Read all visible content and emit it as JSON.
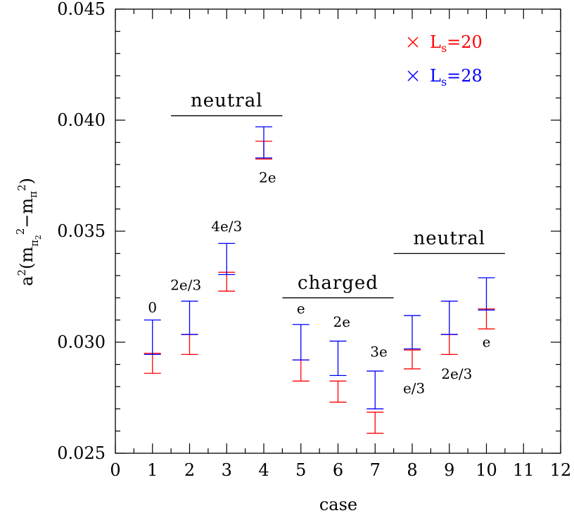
{
  "chart_data": {
    "type": "scatter",
    "xlabel": "case",
    "ylabel": "a²(m_{π₂}²−m_π²)",
    "xlim": [
      0,
      12
    ],
    "ylim": [
      0.025,
      0.045
    ],
    "x_ticks": [
      "0",
      "1",
      "2",
      "3",
      "4",
      "5",
      "6",
      "7",
      "8",
      "9",
      "10",
      "11",
      "12"
    ],
    "y_ticks": [
      "0.025",
      "0.030",
      "0.035",
      "0.040",
      "0.045"
    ],
    "grid": false,
    "legend_position": "top-right",
    "series": [
      {
        "name": "L_s=20",
        "color": "#ff0000",
        "marker": "cross",
        "points": [
          {
            "x": 1,
            "low": 0.0286,
            "high": 0.0295
          },
          {
            "x": 2,
            "low": 0.02945,
            "high": 0.03035
          },
          {
            "x": 3,
            "low": 0.0323,
            "high": 0.03315
          },
          {
            "x": 4,
            "low": 0.03825,
            "high": 0.03905
          },
          {
            "x": 5,
            "low": 0.02825,
            "high": 0.0292
          },
          {
            "x": 6,
            "low": 0.0273,
            "high": 0.02825
          },
          {
            "x": 7,
            "low": 0.0259,
            "high": 0.02685
          },
          {
            "x": 8,
            "low": 0.0288,
            "high": 0.02965
          },
          {
            "x": 9,
            "low": 0.02945,
            "high": 0.03035
          },
          {
            "x": 10,
            "low": 0.0306,
            "high": 0.0315
          }
        ]
      },
      {
        "name": "L_s=28",
        "color": "#0000ff",
        "marker": "cross",
        "points": [
          {
            "x": 1,
            "low": 0.02945,
            "high": 0.031
          },
          {
            "x": 2,
            "low": 0.03035,
            "high": 0.03185
          },
          {
            "x": 3,
            "low": 0.03305,
            "high": 0.03445
          },
          {
            "x": 4,
            "low": 0.0383,
            "high": 0.0397
          },
          {
            "x": 5,
            "low": 0.0292,
            "high": 0.0308
          },
          {
            "x": 6,
            "low": 0.0285,
            "high": 0.03005
          },
          {
            "x": 7,
            "low": 0.027,
            "high": 0.0287
          },
          {
            "x": 8,
            "low": 0.0297,
            "high": 0.0312
          },
          {
            "x": 9,
            "low": 0.03035,
            "high": 0.03185
          },
          {
            "x": 10,
            "low": 0.03145,
            "high": 0.0329
          }
        ]
      }
    ],
    "annotations": [
      {
        "text": "0",
        "x": 1,
        "y": 0.03135
      },
      {
        "text": "2e/3",
        "x": 1.9,
        "y": 0.03235
      },
      {
        "text": "4e/3",
        "x": 3,
        "y": 0.035
      },
      {
        "text": "2e",
        "x": 4.1,
        "y": 0.0372
      },
      {
        "text": "e",
        "x": 5,
        "y": 0.0313
      },
      {
        "text": "2e",
        "x": 6.1,
        "y": 0.0307
      },
      {
        "text": "3e",
        "x": 7.1,
        "y": 0.02935
      },
      {
        "text": "e/3",
        "x": 8.05,
        "y": 0.0277
      },
      {
        "text": "2e/3",
        "x": 9.2,
        "y": 0.02835
      },
      {
        "text": "e",
        "x": 10,
        "y": 0.0298
      }
    ],
    "group_labels": [
      {
        "text": "neutral",
        "x_start": 1.5,
        "x_end": 4.5,
        "y": 0.0402
      },
      {
        "text": "charged",
        "x_start": 4.5,
        "x_end": 7.5,
        "y": 0.032
      },
      {
        "text": "neutral",
        "x_start": 7.5,
        "x_end": 10.5,
        "y": 0.034
      }
    ]
  }
}
